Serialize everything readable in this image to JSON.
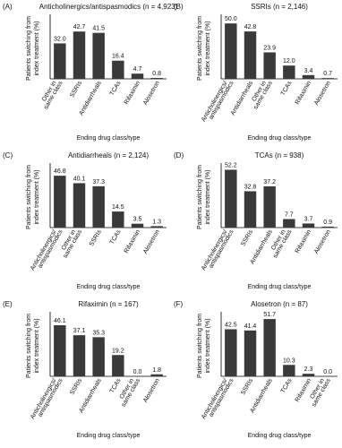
{
  "chart_data": [
    {
      "type": "bar",
      "panel": "(A)",
      "title": "Anticholinergics/antispasmodics (n = 4,923)",
      "y_label": [
        "Patients switching from",
        "index treatment (%)"
      ],
      "x_label": "Ending drug class/type",
      "categories": [
        [
          "Other in",
          "same class"
        ],
        "SSRIs",
        "Antidiarrheals",
        "TCAs",
        "Rifaximin",
        "Alosetron"
      ],
      "values": [
        32.0,
        42.7,
        41.5,
        16.4,
        4.7,
        0.8
      ],
      "value_labels": [
        "32.0",
        "42.7",
        "41.5",
        "16.4",
        "4.7",
        "0.8"
      ],
      "color": "#3a3a3a",
      "ylim": [
        0,
        55
      ]
    },
    {
      "type": "bar",
      "panel": "(B)",
      "title": "SSRIs (n = 2,146)",
      "y_label": [
        "Patients switching from",
        "index treatment (%)"
      ],
      "x_label": "Ending drug class/type",
      "categories": [
        [
          "Anticholinergics/",
          "antispasmodics"
        ],
        "Antidiarrheals",
        [
          "Other in",
          "same class"
        ],
        "TCAs",
        "Rifaximin",
        "Alosetron"
      ],
      "values": [
        50.0,
        42.8,
        23.9,
        12.0,
        3.4,
        0.7
      ],
      "value_labels": [
        "50.0",
        "42.8",
        "23.9",
        "12.0",
        "3.4",
        "0.7"
      ],
      "color": "#3a3a3a",
      "ylim": [
        0,
        55
      ]
    },
    {
      "type": "bar",
      "panel": "(C)",
      "title": "Antidiarrheals (n = 2,124)",
      "y_label": [
        "Patients switching from",
        "index treatment (%)"
      ],
      "x_label": "Ending drug class/type",
      "categories": [
        [
          "Anticholinergics/",
          "antispasmodics"
        ],
        [
          "Other in",
          "same class"
        ],
        "SSRIs",
        "TCAs",
        "Rifaximin",
        "Alosetron"
      ],
      "values": [
        46.8,
        40.1,
        37.3,
        14.5,
        3.5,
        1.3
      ],
      "value_labels": [
        "46.8",
        "40.1",
        "37.3",
        "14.5",
        "3.5",
        "1.3"
      ],
      "color": "#3a3a3a",
      "ylim": [
        0,
        55
      ]
    },
    {
      "type": "bar",
      "panel": "(D)",
      "title": "TCAs (n = 938)",
      "y_label": [
        "Patients switching from",
        "index treatment (%)"
      ],
      "x_label": "Ending drug class/type",
      "categories": [
        [
          "Anticholinergics/",
          "antispasmodics"
        ],
        "SSRIs",
        "Antidiarrheals",
        [
          "Other in",
          "same class"
        ],
        "Rifaximin",
        "Alosetron"
      ],
      "values": [
        52.2,
        32.8,
        37.2,
        7.7,
        3.7,
        0.9
      ],
      "value_labels": [
        "52.2",
        "32.8",
        "37.2",
        "7.7",
        "3.7",
        "0.9"
      ],
      "color": "#3a3a3a",
      "ylim": [
        0,
        55
      ]
    },
    {
      "type": "bar",
      "panel": "(E)",
      "title": "Rifaximin (n = 167)",
      "y_label": [
        "Patients switching from",
        "index treatment (%)"
      ],
      "x_label": "Ending drug class/type",
      "categories": [
        [
          "Anticholinergics/",
          "antispasmodics"
        ],
        "SSRIs",
        "Antidiarrheals",
        "TCAs",
        [
          "Other in",
          "same class"
        ],
        "Alosetron"
      ],
      "values": [
        46.1,
        37.1,
        35.3,
        19.2,
        0.0,
        1.8
      ],
      "value_labels": [
        "46.1",
        "37.1",
        "35.3",
        "19.2",
        "0.0",
        "1.8"
      ],
      "color": "#3a3a3a",
      "ylim": [
        0,
        55
      ]
    },
    {
      "type": "bar",
      "panel": "(F)",
      "title": "Alosetron (n = 87)",
      "y_label": [
        "Patients switching from",
        "index treatment (%)"
      ],
      "x_label": "Ending drug class/type",
      "categories": [
        [
          "Anticholinergics/",
          "antispasmodics"
        ],
        "SSRIs",
        "Antidiarrheals",
        "TCAs",
        "Rifaximin",
        [
          "Other in",
          "same class"
        ]
      ],
      "values": [
        42.5,
        41.4,
        51.7,
        10.3,
        2.3,
        0.0
      ],
      "value_labels": [
        "42.5",
        "41.4",
        "51.7",
        "10.3",
        "2.3",
        "0.0"
      ],
      "color": "#3a3a3a",
      "ylim": [
        0,
        55
      ]
    }
  ]
}
